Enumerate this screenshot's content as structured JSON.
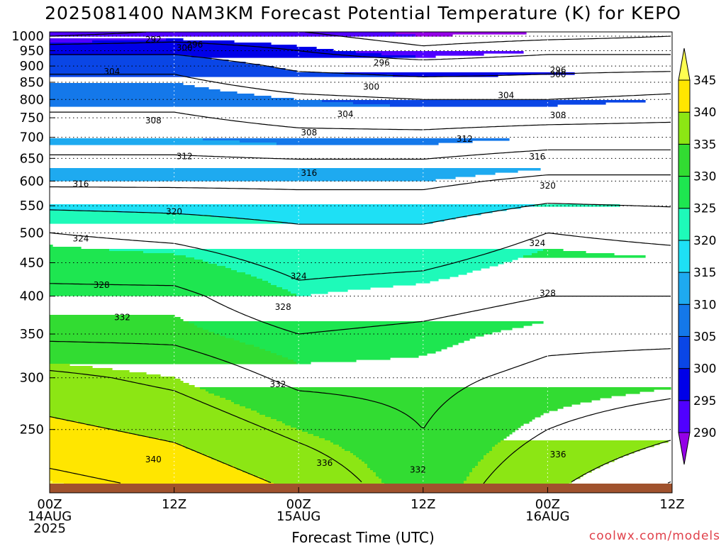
{
  "chart_data": {
    "type": "heatmap",
    "title": "2025081400 NAM3KM Forecast Potential Temperature (K) for KEPO",
    "xlabel": "Forecast Time (UTC)",
    "ylabel": "",
    "credit": "coolwx.com/models",
    "x_ticks": [
      {
        "hour": 0,
        "line1": "00Z",
        "line2": "14AUG",
        "line3": "2025"
      },
      {
        "hour": 12,
        "line1": "12Z",
        "line2": "",
        "line3": ""
      },
      {
        "hour": 24,
        "line1": "00Z",
        "line2": "15AUG",
        "line3": ""
      },
      {
        "hour": 36,
        "line1": "12Z",
        "line2": "",
        "line3": ""
      },
      {
        "hour": 48,
        "line1": "00Z",
        "line2": "16AUG",
        "line3": ""
      },
      {
        "hour": 60,
        "line1": "12Z",
        "line2": "",
        "line3": ""
      }
    ],
    "xlim": [
      0,
      60
    ],
    "y_ticks": [
      250,
      300,
      350,
      400,
      450,
      500,
      550,
      600,
      650,
      700,
      750,
      800,
      850,
      900,
      950,
      1000
    ],
    "ylim_hpa": [
      1015,
      200
    ],
    "colorbar": {
      "levels": [
        290,
        295,
        300,
        305,
        310,
        315,
        320,
        325,
        330,
        335,
        340,
        345
      ],
      "colors": [
        "#9400e6",
        "#5000ff",
        "#0000e8",
        "#0a46e6",
        "#1478ea",
        "#1eaaf0",
        "#1ee0f5",
        "#1efab9",
        "#1ee650",
        "#32dc32",
        "#8ce614",
        "#ffe600",
        "#ffff50"
      ],
      "under_color": "#9400e6",
      "over_color": "#ffff50"
    },
    "ground_color": "#a0522d",
    "contour_interval": 4,
    "profiles": [
      {
        "hour": 0,
        "pressure": [
          1000,
          950,
          900,
          850,
          800,
          700,
          600,
          500,
          400,
          350,
          300,
          250
        ],
        "theta": [
          292,
          299,
          303,
          305,
          307,
          310,
          315,
          324,
          329,
          331,
          337,
          341
        ]
      },
      {
        "hour": 12,
        "pressure": [
          1000,
          950,
          900,
          850,
          800,
          700,
          600,
          500,
          400,
          350,
          300,
          250
        ],
        "theta": [
          294,
          299,
          303,
          305,
          307,
          310,
          315,
          323,
          329,
          331,
          335,
          339
        ]
      },
      {
        "hour": 24,
        "pressure": [
          1000,
          950,
          900,
          850,
          800,
          700,
          600,
          500,
          400,
          350,
          300,
          250
        ],
        "theta": [
          293,
          296,
          299,
          302,
          305,
          309,
          315,
          321,
          325,
          328,
          331,
          335
        ]
      },
      {
        "hour": 36,
        "pressure": [
          1000,
          950,
          900,
          850,
          800,
          700,
          600,
          500,
          400,
          350,
          300,
          250
        ],
        "theta": [
          290,
          293,
          298,
          301,
          304,
          309,
          315,
          321,
          326,
          329,
          331,
          332
        ]
      },
      {
        "hour": 48,
        "pressure": [
          1000,
          950,
          900,
          850,
          800,
          700,
          600,
          500,
          400,
          350,
          300,
          250
        ],
        "theta": [
          291,
          295,
          299,
          301,
          304,
          310,
          317,
          324,
          328,
          331,
          333,
          336
        ]
      },
      {
        "hour": 60,
        "pressure": [
          1000,
          950,
          900,
          850,
          800,
          700,
          600,
          500,
          400,
          350,
          300,
          250
        ],
        "theta": [
          292,
          295,
          299,
          302,
          305,
          310,
          317,
          323,
          328,
          331,
          334,
          339
        ]
      }
    ],
    "contour_labels": [
      {
        "value": "340",
        "hour": 10.0,
        "pressure": 225
      },
      {
        "value": "336",
        "hour": 26.5,
        "pressure": 222
      },
      {
        "value": "332",
        "hour": 35.5,
        "pressure": 217
      },
      {
        "value": "336",
        "hour": 49.0,
        "pressure": 229
      },
      {
        "value": "332",
        "hour": 22.0,
        "pressure": 293
      },
      {
        "value": "332",
        "hour": 7.0,
        "pressure": 371
      },
      {
        "value": "328",
        "hour": 22.5,
        "pressure": 385
      },
      {
        "value": "328",
        "hour": 5.0,
        "pressure": 416
      },
      {
        "value": "324",
        "hour": 24.0,
        "pressure": 429
      },
      {
        "value": "328",
        "hour": 48.0,
        "pressure": 404
      },
      {
        "value": "324",
        "hour": 3.0,
        "pressure": 490
      },
      {
        "value": "324",
        "hour": 47.0,
        "pressure": 482
      },
      {
        "value": "320",
        "hour": 12.0,
        "pressure": 539
      },
      {
        "value": "320",
        "hour": 48.0,
        "pressure": 590
      },
      {
        "value": "316",
        "hour": 3.0,
        "pressure": 594
      },
      {
        "value": "316",
        "hour": 25.0,
        "pressure": 617
      },
      {
        "value": "316",
        "hour": 47.0,
        "pressure": 654
      },
      {
        "value": "312",
        "hour": 13.0,
        "pressure": 655
      },
      {
        "value": "312",
        "hour": 40.0,
        "pressure": 696
      },
      {
        "value": "308",
        "hour": 10.0,
        "pressure": 743
      },
      {
        "value": "308",
        "hour": 25.0,
        "pressure": 712
      },
      {
        "value": "308",
        "hour": 49.0,
        "pressure": 757
      },
      {
        "value": "304",
        "hour": 28.5,
        "pressure": 760
      },
      {
        "value": "304",
        "hour": 44.0,
        "pressure": 812
      },
      {
        "value": "300",
        "hour": 31.0,
        "pressure": 836
      },
      {
        "value": "304",
        "hour": 6.0,
        "pressure": 883
      },
      {
        "value": "300",
        "hour": 49.0,
        "pressure": 874
      },
      {
        "value": "296",
        "hour": 49.0,
        "pressure": 887
      },
      {
        "value": "296",
        "hour": 32.0,
        "pressure": 911
      },
      {
        "value": "300",
        "hour": 13.0,
        "pressure": 959
      },
      {
        "value": "296",
        "hour": 14.0,
        "pressure": 970
      },
      {
        "value": "292",
        "hour": 10.0,
        "pressure": 987
      }
    ]
  }
}
